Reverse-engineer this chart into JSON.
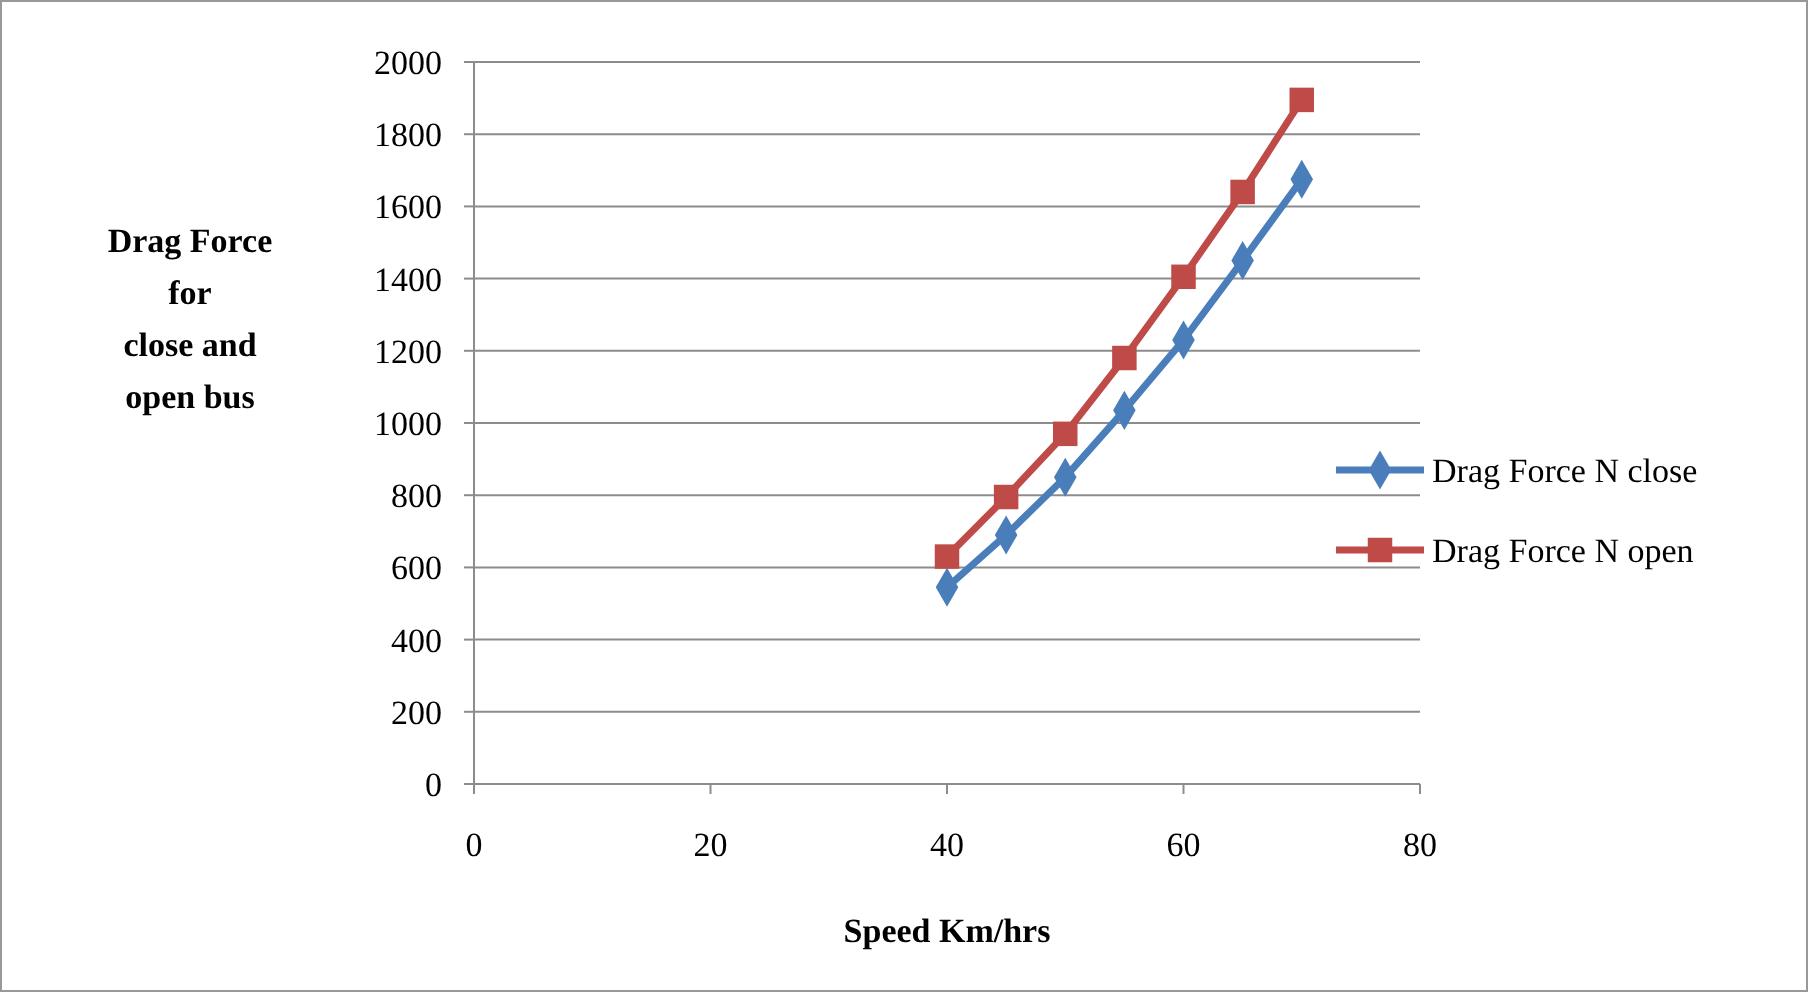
{
  "chart_data": {
    "type": "line",
    "xlabel": "Speed Km/hrs",
    "ylabel": "Drag Force\nfor\nclose and\nopen bus",
    "x": [
      40,
      45,
      50,
      55,
      60,
      65,
      70
    ],
    "series": [
      {
        "name": "Drag Force N close",
        "color": "#4a7ebb",
        "marker": "diamond",
        "values": [
          545,
          690,
          850,
          1035,
          1230,
          1450,
          1675
        ]
      },
      {
        "name": "Drag Force N open",
        "color": "#be4b48",
        "marker": "square",
        "values": [
          630,
          795,
          970,
          1180,
          1405,
          1640,
          1895
        ]
      }
    ],
    "xlim": [
      0,
      80
    ],
    "xticks": [
      0,
      20,
      40,
      60,
      80
    ],
    "ylim": [
      0,
      2000
    ],
    "yticks": [
      0,
      200,
      400,
      600,
      800,
      1000,
      1200,
      1400,
      1600,
      1800,
      2000
    ],
    "grid": "y",
    "legend": "right",
    "line_style": "solid"
  }
}
